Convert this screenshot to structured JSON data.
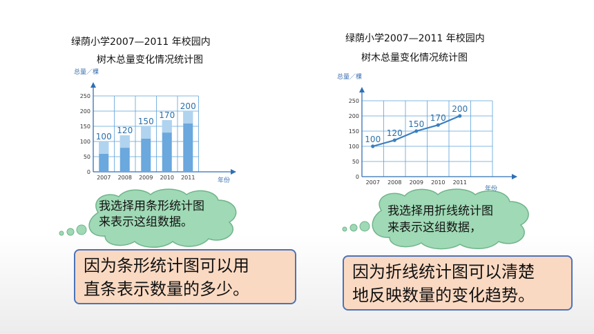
{
  "left": {
    "title_line1": "绿荫小学2007—2011 年校园内",
    "title_line2": "树木总量变化情况统计图",
    "cloud_line1": "我选择用条形统计图",
    "cloud_line2": "来表示这组数据。",
    "reason_line1": "因为条形统计图可以用",
    "reason_line2": "直条表示数量的多少。"
  },
  "right": {
    "title_line1": "绿荫小学2007—2011 年校园内",
    "title_line2": "树木总量变化情况统计图",
    "cloud_line1": "我选择用折线统计图",
    "cloud_line2": "来表示这组数据，",
    "reason_line1": "因为折线统计图可以清楚",
    "reason_line2": "地反映数量的变化趋势。"
  },
  "colors": {
    "bar": "#6aa8de",
    "grid": "#5aa0d8",
    "line": "#3a7fc0",
    "cloud": "#9fd9b5",
    "reason_bg": "#fad9c2",
    "reason_border": "#4a73b8"
  },
  "chart_data": [
    {
      "type": "bar",
      "categories": [
        "2007",
        "2008",
        "2009",
        "2010",
        "2011"
      ],
      "values": [
        100,
        120,
        150,
        170,
        200
      ],
      "data_labels": [
        "100",
        "120",
        "150",
        "170",
        "200"
      ],
      "yticks": [
        "0",
        "50",
        "100",
        "150",
        "200",
        "250"
      ],
      "ylabel": "总量／棵",
      "xlabel": "年份",
      "ylim": [
        0,
        250
      ]
    },
    {
      "type": "line",
      "categories": [
        "2007",
        "2008",
        "2009",
        "2010",
        "2011"
      ],
      "values": [
        100,
        120,
        150,
        170,
        200
      ],
      "data_labels": [
        "100",
        "120",
        "150",
        "170",
        "200"
      ],
      "yticks": [
        "0",
        "50",
        "100",
        "150",
        "200",
        "250"
      ],
      "ylabel": "总量／棵",
      "xlabel": "年份",
      "ylim": [
        0,
        250
      ]
    }
  ]
}
